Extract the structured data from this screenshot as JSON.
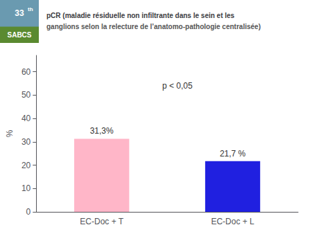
{
  "chart_data": {
    "type": "bar",
    "title": "pCR (maladie résiduelle non infiltrante dans le sein et les",
    "subtitle": "ganglions selon la relecture de l’anatomo-pathologie centralisée)",
    "categories": [
      "EC-Doc + T",
      "EC-Doc + L"
    ],
    "values": [
      31.3,
      21.7
    ],
    "value_labels": [
      "31,3%",
      "21,7 %"
    ],
    "data_labels": true,
    "colors": [
      "#FFB6C8",
      "#2020E0"
    ],
    "ylabel": "%",
    "ylim": [
      0,
      67
    ],
    "yticks": [
      0,
      10,
      20,
      30,
      40,
      50,
      60
    ],
    "grid": false,
    "annotations": [
      "p < 0,05",
      "33",
      "th",
      "SABCS"
    ]
  }
}
